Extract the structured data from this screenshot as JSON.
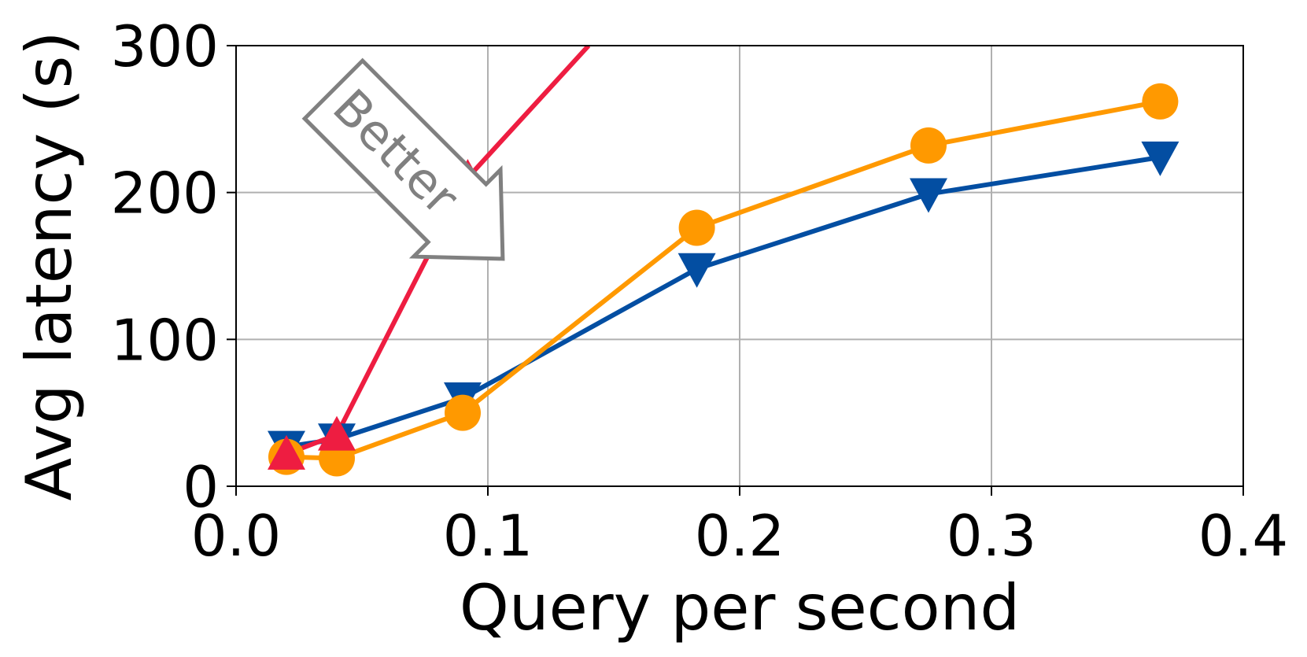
{
  "chart_data": {
    "type": "line",
    "xlabel": "Query per second",
    "ylabel": "Avg latency (s)",
    "xlim": [
      0.0,
      0.4
    ],
    "ylim": [
      0,
      300
    ],
    "x_ticks": [
      "0.0",
      "0.1",
      "0.2",
      "0.3",
      "0.4"
    ],
    "y_ticks": [
      "0",
      "100",
      "200",
      "300"
    ],
    "grid": true,
    "series": [
      {
        "color": "#034EA2",
        "marker": "triangle-down",
        "x": [
          0.02,
          0.04,
          0.09,
          0.183,
          0.275,
          0.367
        ],
        "y": [
          27,
          32,
          60,
          148,
          199,
          224
        ]
      },
      {
        "color": "#FF9900",
        "marker": "circle",
        "x": [
          0.02,
          0.04,
          0.09,
          0.183,
          0.275,
          0.367
        ],
        "y": [
          20,
          19,
          50,
          176,
          232,
          262
        ]
      },
      {
        "color": "#EE1D41",
        "marker": "triangle-up",
        "x": [
          0.02,
          0.04,
          0.092,
          0.14
        ],
        "y": [
          22,
          35,
          210,
          300
        ]
      }
    ],
    "annotation": {
      "text": "Better",
      "color": "#808080"
    }
  }
}
